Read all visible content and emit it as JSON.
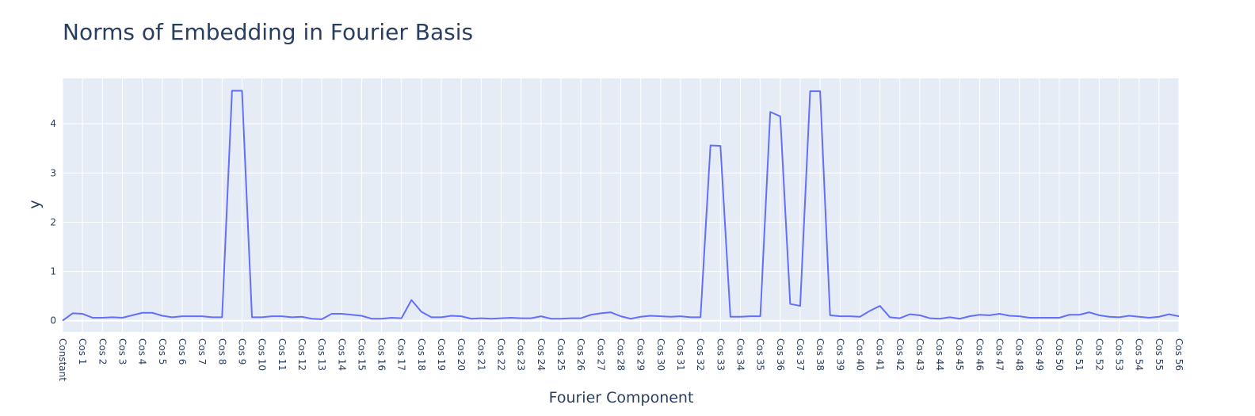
{
  "chart_data": {
    "type": "line",
    "title": "Norms of Embedding in Fourier Basis",
    "xlabel": "Fourier Component",
    "ylabel": "y",
    "categories": [
      "Constant",
      null,
      "Cos 1",
      null,
      "Cos 2",
      null,
      "Cos 3",
      null,
      "Cos 4",
      null,
      "Cos 5",
      null,
      "Cos 6",
      null,
      "Cos 7",
      null,
      "Cos 8",
      null,
      "Cos 9",
      null,
      "Cos 10",
      null,
      "Cos 11",
      null,
      "Cos 12",
      null,
      "Cos 13",
      null,
      "Cos 14",
      null,
      "Cos 15",
      null,
      "Cos 16",
      null,
      "Cos 17",
      null,
      "Cos 18",
      null,
      "Cos 19",
      null,
      "Cos 20",
      null,
      "Cos 21",
      null,
      "Cos 22",
      null,
      "Cos 23",
      null,
      "Cos 24",
      null,
      "Cos 25",
      null,
      "Cos 26",
      null,
      "Cos 27",
      null,
      "Cos 28",
      null,
      "Cos 29",
      null,
      "Cos 30",
      null,
      "Cos 31",
      null,
      "Cos 32",
      null,
      "Cos 33",
      null,
      "Cos 34",
      null,
      "Cos 35",
      null,
      "Cos 36",
      null,
      "Cos 37",
      null,
      "Cos 38",
      null,
      "Cos 39",
      null,
      "Cos 40",
      null,
      "Cos 41",
      null,
      "Cos 42",
      null,
      "Cos 43",
      null,
      "Cos 44",
      null,
      "Cos 45",
      null,
      "Cos 46",
      null,
      "Cos 47",
      null,
      "Cos 48",
      null,
      "Cos 49",
      null,
      "Cos 50",
      null,
      "Cos 51",
      null,
      "Cos 52",
      null,
      "Cos 53",
      null,
      "Cos 54",
      null,
      "Cos 55",
      null,
      "Cos 56"
    ],
    "values": [
      0,
      0.15,
      0.14,
      0.06,
      0.06,
      0.07,
      0.06,
      0.11,
      0.16,
      0.16,
      0.1,
      0.07,
      0.09,
      0.09,
      0.09,
      0.07,
      0.07,
      4.67,
      4.67,
      0.07,
      0.07,
      0.09,
      0.09,
      0.07,
      0.08,
      0.04,
      0.03,
      0.14,
      0.14,
      0.12,
      0.1,
      0.04,
      0.04,
      0.06,
      0.05,
      0.42,
      0.18,
      0.07,
      0.07,
      0.1,
      0.09,
      0.04,
      0.05,
      0.04,
      0.05,
      0.06,
      0.05,
      0.05,
      0.09,
      0.04,
      0.04,
      0.05,
      0.05,
      0.12,
      0.15,
      0.17,
      0.09,
      0.04,
      0.08,
      0.1,
      0.09,
      0.08,
      0.09,
      0.07,
      0.07,
      3.56,
      3.55,
      0.08,
      0.08,
      0.09,
      0.09,
      4.24,
      4.15,
      0.34,
      0.3,
      4.66,
      4.66,
      0.11,
      0.09,
      0.09,
      0.08,
      0.2,
      0.3,
      0.07,
      0.05,
      0.13,
      0.11,
      0.05,
      0.04,
      0.07,
      0.04,
      0.09,
      0.12,
      0.11,
      0.14,
      0.1,
      0.09,
      0.06,
      0.06,
      0.06,
      0.06,
      0.12,
      0.12,
      0.17,
      0.11,
      0.08,
      0.07,
      0.1,
      0.08,
      0.06,
      0.08,
      0.13,
      0.09
    ],
    "color": "#636efa",
    "ylim": [
      -0.23,
      4.92
    ],
    "yticks": [
      0,
      1,
      2,
      3,
      4
    ],
    "grid": true
  }
}
